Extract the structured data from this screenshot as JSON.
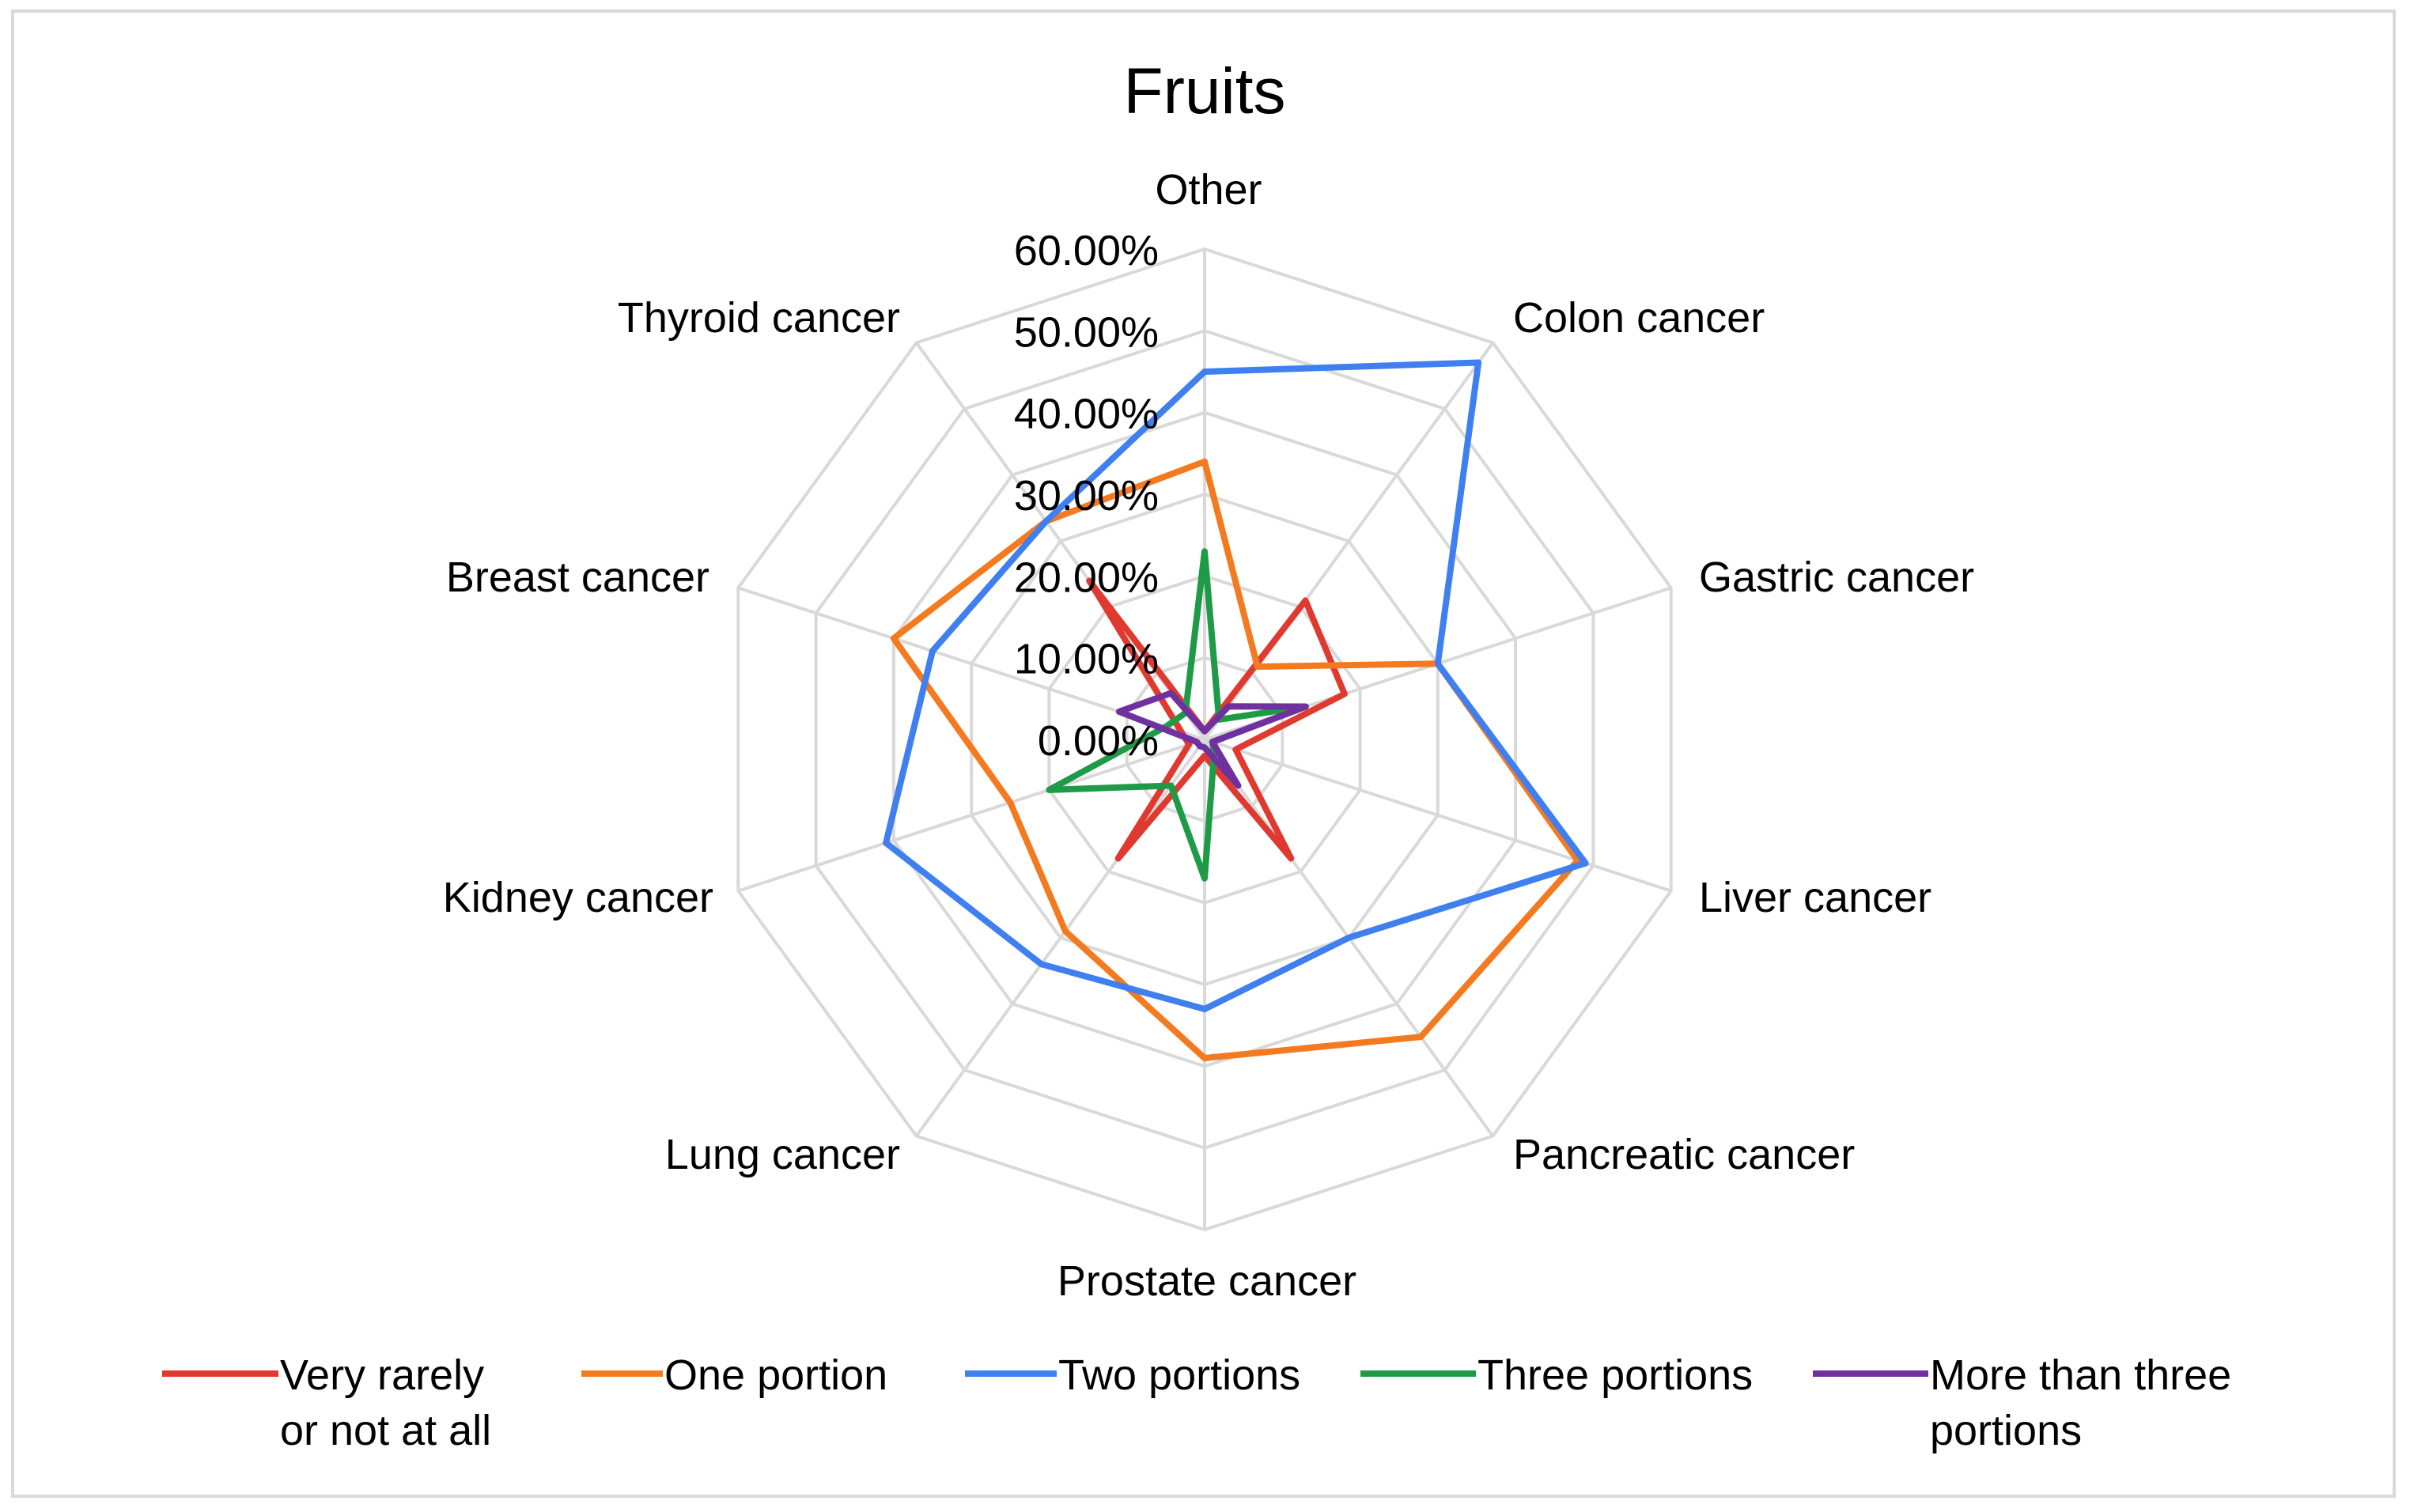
{
  "chart_data": {
    "type": "radar",
    "title": "Fruits",
    "categories": [
      "Other",
      "Colon cancer",
      "Gastric cancer",
      "Liver cancer",
      "Pancreatic cancer",
      "Prostate cancer",
      "Lung cancer",
      "Kidney cancer",
      "Breast cancer",
      "Thyroid cancer"
    ],
    "tick_labels": [
      "0.00%",
      "10.00%",
      "20.00%",
      "30.00%",
      "40.00%",
      "50.00%",
      "60.00%"
    ],
    "rmax": 60,
    "series": [
      {
        "name": "Very rarely or not at all",
        "legend_lines": [
          "Very rarely",
          "or not at all"
        ],
        "color": "#e03a30",
        "values": [
          1.0,
          21.0,
          18.0,
          4.0,
          18.0,
          2.0,
          18.0,
          2.0,
          3.0,
          24.0
        ]
      },
      {
        "name": "One portion",
        "legend_lines": [
          "One portion"
        ],
        "color": "#f47a20",
        "values": [
          34.0,
          11.0,
          30.0,
          48.0,
          45.0,
          39.0,
          29.0,
          25.0,
          40.0,
          33.0
        ]
      },
      {
        "name": "Two portions",
        "legend_lines": [
          "Two portions"
        ],
        "color": "#3f7ff0",
        "values": [
          45.0,
          57.0,
          30.0,
          49.0,
          30.0,
          33.0,
          34.0,
          41.0,
          35.0,
          33.0
        ]
      },
      {
        "name": "Three portions",
        "legend_lines": [
          "Three portions"
        ],
        "color": "#1f9a46",
        "values": [
          23.0,
          3.0,
          13.0,
          1.0,
          2.0,
          17.0,
          7.0,
          20.0,
          5.0,
          4.0
        ]
      },
      {
        "name": "More than three portions",
        "legend_lines": [
          "More than three",
          "portions"
        ],
        "color": "#7030a0",
        "values": [
          1.0,
          5.0,
          13.0,
          1.0,
          7.0,
          1.0,
          1.0,
          1.0,
          11.0,
          7.0
        ]
      }
    ]
  }
}
